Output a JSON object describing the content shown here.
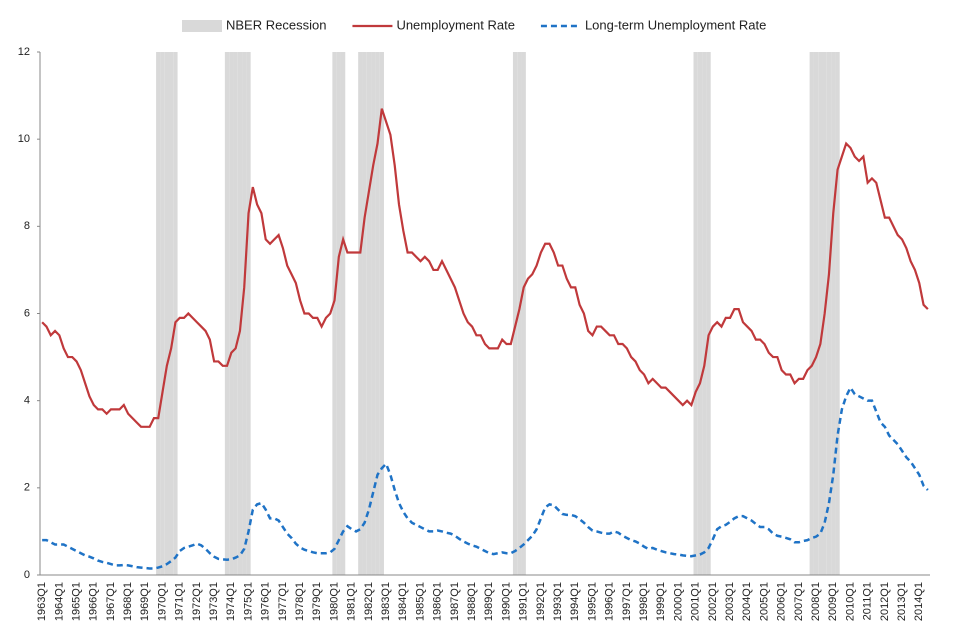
{
  "chart_data": {
    "type": "line",
    "categories": [
      "1963Q1",
      null,
      null,
      null,
      "1964Q1",
      null,
      null,
      null,
      "1965Q1",
      null,
      null,
      null,
      "1966Q1",
      null,
      null,
      null,
      "1967Q1",
      null,
      null,
      null,
      "1968Q1",
      null,
      null,
      null,
      "1969Q1",
      null,
      null,
      null,
      "1970Q1",
      null,
      null,
      null,
      "1971Q1",
      null,
      null,
      null,
      "1972Q1",
      null,
      null,
      null,
      "1973Q1",
      null,
      null,
      null,
      "1974Q1",
      null,
      null,
      null,
      "1975Q1",
      null,
      null,
      null,
      "1976Q1",
      null,
      null,
      null,
      "1977Q1",
      null,
      null,
      null,
      "1978Q1",
      null,
      null,
      null,
      "1979Q1",
      null,
      null,
      null,
      "1980Q1",
      null,
      null,
      null,
      "1981Q1",
      null,
      null,
      null,
      "1982Q1",
      null,
      null,
      null,
      "1983Q1",
      null,
      null,
      null,
      "1984Q1",
      null,
      null,
      null,
      "1985Q1",
      null,
      null,
      null,
      "1986Q1",
      null,
      null,
      null,
      "1987Q1",
      null,
      null,
      null,
      "1988Q1",
      null,
      null,
      null,
      "1989Q1",
      null,
      null,
      null,
      "1990Q1",
      null,
      null,
      null,
      "1991Q1",
      null,
      null,
      null,
      "1992Q1",
      null,
      null,
      null,
      "1993Q1",
      null,
      null,
      null,
      "1994Q1",
      null,
      null,
      null,
      "1995Q1",
      null,
      null,
      null,
      "1996Q1",
      null,
      null,
      null,
      "1997Q1",
      null,
      null,
      null,
      "1998Q1",
      null,
      null,
      null,
      "1999Q1",
      null,
      null,
      null,
      "2000Q1",
      null,
      null,
      null,
      "2001Q1",
      null,
      null,
      null,
      "2002Q1",
      null,
      null,
      null,
      "2003Q1",
      null,
      null,
      null,
      "2004Q1",
      null,
      null,
      null,
      "2005Q1",
      null,
      null,
      null,
      "2006Q1",
      null,
      null,
      null,
      "2007Q1",
      null,
      null,
      null,
      "2008Q1",
      null,
      null,
      null,
      "2009Q1",
      null,
      null,
      null,
      "2010Q1",
      null,
      null,
      null,
      "2011Q1",
      null,
      null,
      null,
      "2012Q1",
      null,
      null,
      null,
      "2013Q1",
      null,
      null,
      null,
      "2014Q1",
      null,
      null
    ],
    "series": [
      {
        "name": "NBER Recession",
        "type": "bar",
        "color": "#d9d9d9",
        "values": [
          0,
          0,
          0,
          0,
          0,
          0,
          0,
          0,
          0,
          0,
          0,
          0,
          0,
          0,
          0,
          0,
          0,
          0,
          0,
          0,
          0,
          0,
          0,
          0,
          0,
          0,
          0,
          12,
          12,
          12,
          12,
          12,
          0,
          0,
          0,
          0,
          0,
          0,
          0,
          0,
          0,
          0,
          0,
          12,
          12,
          12,
          12,
          12,
          12,
          0,
          0,
          0,
          0,
          0,
          0,
          0,
          0,
          0,
          0,
          0,
          0,
          0,
          0,
          0,
          0,
          0,
          0,
          0,
          12,
          12,
          12,
          0,
          0,
          0,
          12,
          12,
          12,
          12,
          12,
          12,
          0,
          0,
          0,
          0,
          0,
          0,
          0,
          0,
          0,
          0,
          0,
          0,
          0,
          0,
          0,
          0,
          0,
          0,
          0,
          0,
          0,
          0,
          0,
          0,
          0,
          0,
          0,
          0,
          0,
          0,
          12,
          12,
          12,
          0,
          0,
          0,
          0,
          0,
          0,
          0,
          0,
          0,
          0,
          0,
          0,
          0,
          0,
          0,
          0,
          0,
          0,
          0,
          0,
          0,
          0,
          0,
          0,
          0,
          0,
          0,
          0,
          0,
          0,
          0,
          0,
          0,
          0,
          0,
          0,
          0,
          0,
          0,
          12,
          12,
          12,
          12,
          0,
          0,
          0,
          0,
          0,
          0,
          0,
          0,
          0,
          0,
          0,
          0,
          0,
          0,
          0,
          0,
          0,
          0,
          0,
          0,
          0,
          0,
          0,
          12,
          12,
          12,
          12,
          12,
          12,
          12,
          0,
          0,
          0,
          0,
          0,
          0,
          0,
          0,
          0,
          0,
          0,
          0,
          0,
          0,
          0,
          0,
          0,
          0,
          0,
          0,
          0
        ]
      },
      {
        "name": "Unemployment Rate",
        "type": "line",
        "color": "#c0393b",
        "dashed": false,
        "values": [
          5.8,
          5.7,
          5.5,
          5.6,
          5.5,
          5.2,
          5.0,
          5.0,
          4.9,
          4.7,
          4.4,
          4.1,
          3.9,
          3.8,
          3.8,
          3.7,
          3.8,
          3.8,
          3.8,
          3.9,
          3.7,
          3.6,
          3.5,
          3.4,
          3.4,
          3.4,
          3.6,
          3.6,
          4.2,
          4.8,
          5.2,
          5.8,
          5.9,
          5.9,
          6.0,
          5.9,
          5.8,
          5.7,
          5.6,
          5.4,
          4.9,
          4.9,
          4.8,
          4.8,
          5.1,
          5.2,
          5.6,
          6.6,
          8.3,
          8.9,
          8.5,
          8.3,
          7.7,
          7.6,
          7.7,
          7.8,
          7.5,
          7.1,
          6.9,
          6.7,
          6.3,
          6.0,
          6.0,
          5.9,
          5.9,
          5.7,
          5.9,
          6.0,
          6.3,
          7.3,
          7.7,
          7.4,
          7.4,
          7.4,
          7.4,
          8.2,
          8.8,
          9.4,
          9.9,
          10.7,
          10.4,
          10.1,
          9.4,
          8.5,
          7.9,
          7.4,
          7.4,
          7.3,
          7.2,
          7.3,
          7.2,
          7.0,
          7.0,
          7.2,
          7.0,
          6.8,
          6.6,
          6.3,
          6.0,
          5.8,
          5.7,
          5.5,
          5.5,
          5.3,
          5.2,
          5.2,
          5.2,
          5.4,
          5.3,
          5.3,
          5.7,
          6.1,
          6.6,
          6.8,
          6.9,
          7.1,
          7.4,
          7.6,
          7.6,
          7.4,
          7.1,
          7.1,
          6.8,
          6.6,
          6.6,
          6.2,
          6.0,
          5.6,
          5.5,
          5.7,
          5.7,
          5.6,
          5.5,
          5.5,
          5.3,
          5.3,
          5.2,
          5.0,
          4.9,
          4.7,
          4.6,
          4.4,
          4.5,
          4.4,
          4.3,
          4.3,
          4.2,
          4.1,
          4.0,
          3.9,
          4.0,
          3.9,
          4.2,
          4.4,
          4.8,
          5.5,
          5.7,
          5.8,
          5.7,
          5.9,
          5.9,
          6.1,
          6.1,
          5.8,
          5.7,
          5.6,
          5.4,
          5.4,
          5.3,
          5.1,
          5.0,
          5.0,
          4.7,
          4.6,
          4.6,
          4.4,
          4.5,
          4.5,
          4.7,
          4.8,
          5.0,
          5.3,
          6.0,
          6.9,
          8.3,
          9.3,
          9.6,
          9.9,
          9.8,
          9.6,
          9.5,
          9.6,
          9.0,
          9.1,
          9.0,
          8.6,
          8.2,
          8.2,
          8.0,
          7.8,
          7.7,
          7.5,
          7.2,
          7.0,
          6.7,
          6.2,
          6.1
        ]
      },
      {
        "name": "Long-term Unemployment Rate",
        "type": "line",
        "color": "#1f73c6",
        "dashed": true,
        "values": [
          0.8,
          0.8,
          0.75,
          0.7,
          0.7,
          0.7,
          0.65,
          0.6,
          0.55,
          0.5,
          0.45,
          0.42,
          0.38,
          0.33,
          0.3,
          0.28,
          0.25,
          0.22,
          0.22,
          0.23,
          0.22,
          0.2,
          0.18,
          0.17,
          0.16,
          0.15,
          0.15,
          0.17,
          0.2,
          0.25,
          0.32,
          0.4,
          0.55,
          0.62,
          0.65,
          0.68,
          0.72,
          0.68,
          0.6,
          0.5,
          0.42,
          0.37,
          0.36,
          0.35,
          0.36,
          0.4,
          0.45,
          0.6,
          1.0,
          1.5,
          1.62,
          1.65,
          1.5,
          1.3,
          1.3,
          1.25,
          1.1,
          0.95,
          0.85,
          0.72,
          0.63,
          0.58,
          0.55,
          0.52,
          0.5,
          0.5,
          0.5,
          0.52,
          0.6,
          0.8,
          1.0,
          1.12,
          1.05,
          1.0,
          1.05,
          1.2,
          1.5,
          1.9,
          2.3,
          2.45,
          2.55,
          2.3,
          1.95,
          1.65,
          1.45,
          1.3,
          1.2,
          1.15,
          1.1,
          1.05,
          1.0,
          1.0,
          1.02,
          1.0,
          0.97,
          0.95,
          0.9,
          0.83,
          0.77,
          0.72,
          0.68,
          0.65,
          0.6,
          0.55,
          0.5,
          0.48,
          0.5,
          0.52,
          0.5,
          0.5,
          0.55,
          0.62,
          0.7,
          0.8,
          0.9,
          1.05,
          1.3,
          1.55,
          1.62,
          1.6,
          1.5,
          1.4,
          1.38,
          1.38,
          1.35,
          1.28,
          1.2,
          1.1,
          1.02,
          1.0,
          0.97,
          0.95,
          0.95,
          1.0,
          0.97,
          0.9,
          0.85,
          0.8,
          0.77,
          0.72,
          0.65,
          0.6,
          0.62,
          0.58,
          0.55,
          0.52,
          0.5,
          0.48,
          0.47,
          0.45,
          0.44,
          0.43,
          0.45,
          0.47,
          0.52,
          0.62,
          0.82,
          1.05,
          1.12,
          1.15,
          1.22,
          1.3,
          1.35,
          1.35,
          1.3,
          1.25,
          1.17,
          1.1,
          1.1,
          1.05,
          0.95,
          0.9,
          0.88,
          0.85,
          0.82,
          0.75,
          0.75,
          0.78,
          0.8,
          0.85,
          0.88,
          0.95,
          1.2,
          1.65,
          2.3,
          3.2,
          3.8,
          4.1,
          4.3,
          4.15,
          4.1,
          4.05,
          4.0,
          4.0,
          3.75,
          3.5,
          3.4,
          3.2,
          3.1,
          3.0,
          2.85,
          2.7,
          2.6,
          2.45,
          2.3,
          2.05,
          1.95
        ]
      }
    ],
    "ylim": [
      0,
      12
    ],
    "yticks": [
      0,
      2,
      4,
      6,
      8,
      10,
      12
    ],
    "grid": false,
    "legend": "top"
  }
}
